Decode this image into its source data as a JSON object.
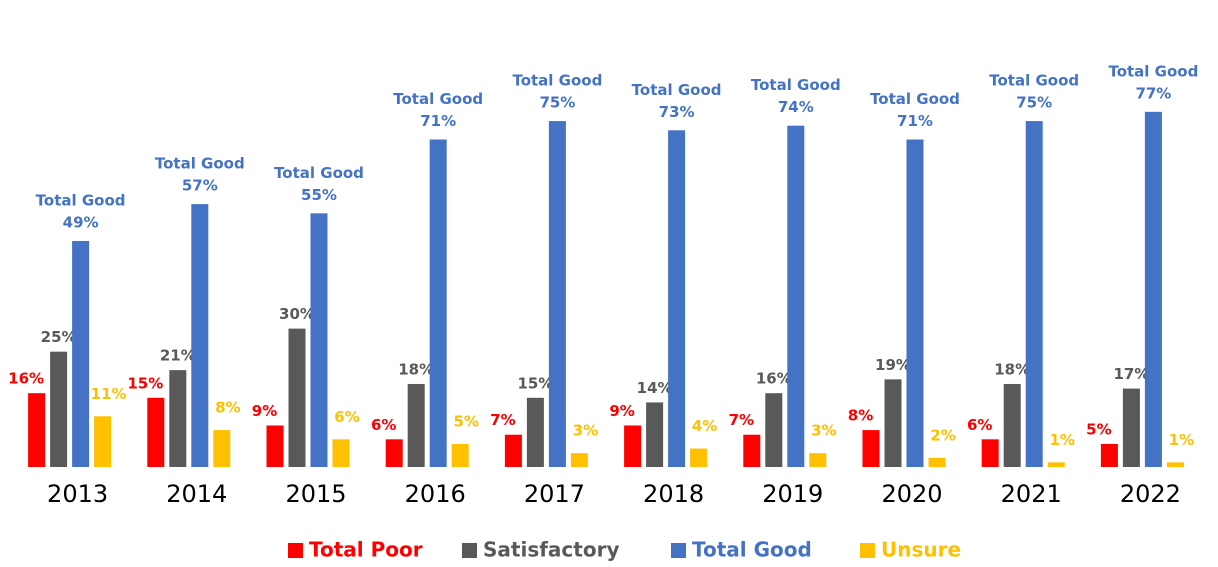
{
  "chart_data": {
    "type": "bar",
    "categories": [
      "2013",
      "2014",
      "2015",
      "2016",
      "2017",
      "2018",
      "2019",
      "2020",
      "2021",
      "2022"
    ],
    "ylim": [
      0,
      80
    ],
    "series": [
      {
        "name": "Total Poor",
        "color": "#ff0000",
        "values": [
          16,
          15,
          9,
          6,
          7,
          9,
          7,
          8,
          6,
          5
        ],
        "value_labels": [
          "16%",
          "15%",
          "9%",
          "6%",
          "7%",
          "9%",
          "7%",
          "8%",
          "6%",
          "5%"
        ]
      },
      {
        "name": "Satisfactory",
        "color": "#595959",
        "values": [
          25,
          21,
          30,
          18,
          15,
          14,
          16,
          19,
          18,
          17
        ],
        "value_labels": [
          "25%",
          "21%",
          "30%",
          "18%",
          "15%",
          "14%",
          "16%",
          "19%",
          "18%",
          "17%"
        ]
      },
      {
        "name": "Total Good",
        "color": "#4472c4",
        "values": [
          49,
          57,
          55,
          71,
          75,
          73,
          74,
          71,
          75,
          77
        ],
        "value_labels": [
          "49%",
          "57%",
          "55%",
          "71%",
          "75%",
          "73%",
          "74%",
          "71%",
          "75%",
          "77%"
        ]
      },
      {
        "name": "Unsure",
        "color": "#ffc000",
        "values": [
          11,
          8,
          6,
          5,
          3,
          4,
          3,
          2,
          1,
          1
        ],
        "value_labels": [
          "11%",
          "8%",
          "6%",
          "5%",
          "3%",
          "4%",
          "3%",
          "2%",
          "1%",
          "1%"
        ]
      }
    ]
  }
}
